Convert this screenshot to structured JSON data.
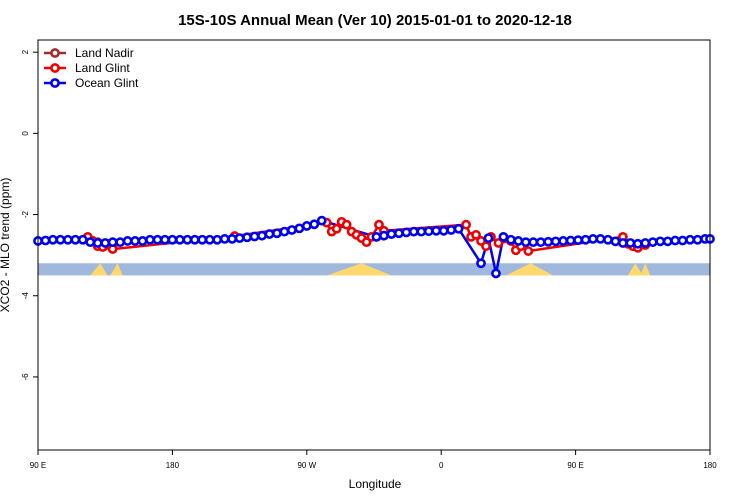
{
  "chart_data": {
    "type": "line",
    "title": "15S-10S Annual Mean (Ver 10)   2015-01-01 to 2020-12-18",
    "xlabel": "Longitude",
    "ylabel": "XCO2 - MLO trend (ppm)",
    "xlim": [
      -90,
      180
    ],
    "ylim": [
      -7.8,
      2.3
    ],
    "x_ticks": [
      {
        "value": -90,
        "label": "90 E"
      },
      {
        "value": -36,
        "label": "180"
      },
      {
        "value": 18,
        "label": "90 W"
      },
      {
        "value": 72,
        "label": "0"
      },
      {
        "value": 126,
        "label": "90 E"
      },
      {
        "value": 180,
        "label": "180"
      }
    ],
    "y_ticks": [
      2,
      0,
      -2,
      -4,
      -6
    ],
    "grid": false,
    "legend_position": "top-left",
    "colors": {
      "land_nadir": "#a52a2a",
      "land_glint": "#ee0000",
      "ocean_glint": "#0000ee",
      "ocean_band": "#9fb8dc",
      "land_band": "#ffd86e"
    },
    "surface_band": {
      "y_top": -3.2,
      "y_bottom": -3.5
    },
    "land_segments": [
      {
        "x": [
          -69,
          -65,
          -62
        ]
      },
      {
        "x": [
          -61,
          -58,
          -56
        ]
      },
      {
        "x": [
          26,
          40,
          52
        ]
      },
      {
        "x": [
          98,
          108,
          117
        ]
      },
      {
        "x": [
          147,
          150,
          153
        ]
      },
      {
        "x": [
          152,
          154,
          156
        ]
      }
    ],
    "series": [
      {
        "name": "Land Nadir",
        "x": [
          -70,
          -66,
          -63,
          -60
        ],
        "y": [
          -2.58,
          -2.68,
          -2.76,
          -2.78
        ]
      },
      {
        "name": "Land Glint",
        "x": [
          -70,
          -68,
          -66,
          -64,
          -62,
          -60,
          -11,
          26,
          28,
          30,
          32,
          34,
          36,
          38,
          40,
          42,
          44,
          47,
          49,
          82,
          84,
          86,
          88,
          90,
          92,
          95,
          100,
          102,
          104,
          107,
          145,
          147,
          149,
          151,
          154
        ],
        "y": [
          -2.55,
          -2.65,
          -2.78,
          -2.8,
          -2.72,
          -2.85,
          -2.53,
          -2.2,
          -2.42,
          -2.35,
          -2.18,
          -2.25,
          -2.42,
          -2.5,
          -2.58,
          -2.68,
          -2.55,
          -2.25,
          -2.4,
          -2.25,
          -2.55,
          -2.5,
          -2.65,
          -2.78,
          -2.55,
          -2.7,
          -2.65,
          -2.88,
          -2.78,
          -2.9,
          -2.55,
          -2.72,
          -2.78,
          -2.82,
          -2.75
        ]
      },
      {
        "name": "Ocean Glint",
        "x": [
          -90,
          -87,
          -84,
          -81,
          -78,
          -75,
          -72,
          -69,
          -66,
          -63,
          -60,
          -57,
          -54,
          -51,
          -48,
          -45,
          -42,
          -39,
          -36,
          -33,
          -30,
          -27,
          -24,
          -21,
          -18,
          -15,
          -12,
          -9,
          -6,
          -3,
          0,
          3,
          6,
          9,
          12,
          15,
          18,
          21,
          24,
          46,
          49,
          52,
          55,
          58,
          61,
          64,
          67,
          70,
          73,
          76,
          79,
          88,
          91,
          94,
          97,
          100,
          103,
          106,
          109,
          112,
          115,
          118,
          121,
          124,
          127,
          130,
          133,
          136,
          139,
          142,
          145,
          148,
          151,
          154,
          157,
          160,
          163,
          166,
          169,
          172,
          175,
          178,
          180
        ],
        "y": [
          -2.65,
          -2.64,
          -2.62,
          -2.62,
          -2.62,
          -2.62,
          -2.62,
          -2.68,
          -2.7,
          -2.7,
          -2.68,
          -2.68,
          -2.65,
          -2.65,
          -2.65,
          -2.62,
          -2.62,
          -2.62,
          -2.62,
          -2.62,
          -2.62,
          -2.62,
          -2.62,
          -2.62,
          -2.62,
          -2.6,
          -2.6,
          -2.58,
          -2.56,
          -2.54,
          -2.52,
          -2.48,
          -2.46,
          -2.42,
          -2.38,
          -2.34,
          -2.28,
          -2.24,
          -2.15,
          -2.55,
          -2.52,
          -2.48,
          -2.46,
          -2.44,
          -2.42,
          -2.42,
          -2.41,
          -2.4,
          -2.4,
          -2.38,
          -2.35,
          -3.2,
          -2.58,
          -3.45,
          -2.55,
          -2.62,
          -2.65,
          -2.68,
          -2.68,
          -2.68,
          -2.67,
          -2.66,
          -2.65,
          -2.64,
          -2.63,
          -2.62,
          -2.6,
          -2.6,
          -2.62,
          -2.66,
          -2.7,
          -2.7,
          -2.72,
          -2.7,
          -2.68,
          -2.66,
          -2.66,
          -2.64,
          -2.64,
          -2.62,
          -2.62,
          -2.6,
          -2.6
        ]
      }
    ]
  }
}
